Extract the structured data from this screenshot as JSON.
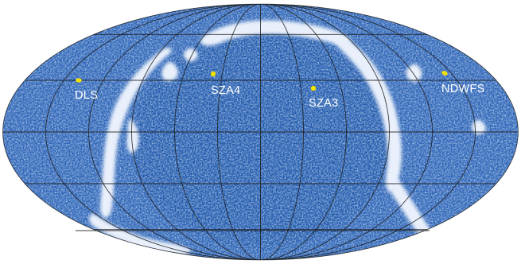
{
  "map": {
    "projection": "mollweide",
    "colors": {
      "background": "#ffffff",
      "sky_base": "#2b62b8",
      "sky_dark": "#123f97",
      "sky_light": "#5d8fd6",
      "loop_emission": "#e9f0fb",
      "grid": "#1b1b1b",
      "marker": "#f4e100",
      "label": "#ffffff"
    },
    "fields": [
      {
        "id": "dls",
        "label": "DLS"
      },
      {
        "id": "sza4",
        "label": "SZA4"
      },
      {
        "id": "sza3",
        "label": "SZA3"
      },
      {
        "id": "ndwfs",
        "label": "NDWFS"
      }
    ]
  }
}
